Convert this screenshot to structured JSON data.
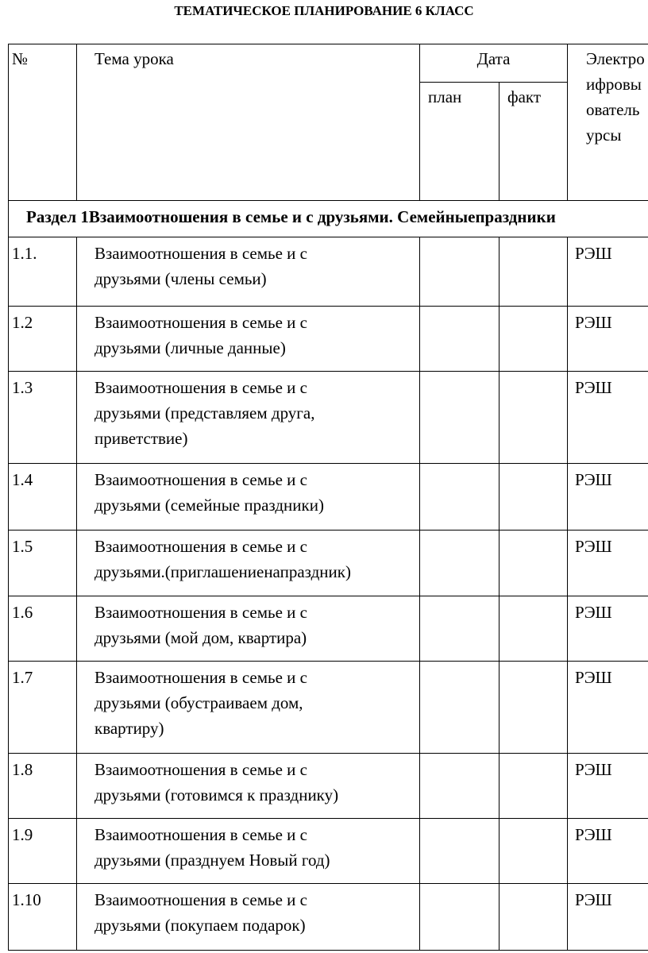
{
  "header": {
    "title": "ТЕМАТИЧЕСКОЕ ПЛАНИРОВАНИЕ 6 КЛАСС"
  },
  "table": {
    "columns": {
      "number": "№",
      "topic": "Тема урока",
      "date": "Дата",
      "plan": "план",
      "fact": "факт",
      "resources": [
        "Электро",
        "ифровы",
        "ователь",
        "урсы"
      ]
    },
    "section": "Раздел 1Взаимоотношения в семье и с друзьями. Семейныепраздники",
    "rows": [
      {
        "number": "1.1.",
        "topic": [
          "Взаимоотношения в семье и с",
          "друзьями (члены семьи)"
        ],
        "resource": "РЭШ"
      },
      {
        "number": "1.2",
        "topic": [
          "Взаимоотношения в семье и с",
          "друзьями (личные данные)"
        ],
        "resource": "РЭШ"
      },
      {
        "number": "1.3",
        "topic": [
          "Взаимоотношения в семье и с",
          "друзьями (представляем друга,",
          "приветствие)"
        ],
        "resource": "РЭШ"
      },
      {
        "number": "1.4",
        "topic": [
          "Взаимоотношения в семье и с",
          "друзьями (семейные праздники)"
        ],
        "resource": "РЭШ"
      },
      {
        "number": "1.5",
        "topic": [
          "Взаимоотношения в семье и с",
          "друзьями.(приглашениенапраздник)"
        ],
        "resource": "РЭШ"
      },
      {
        "number": "1.6",
        "topic": [
          "Взаимоотношения в семье и с",
          "друзьями (мой дом, квартира)"
        ],
        "resource": "РЭШ"
      },
      {
        "number": "1.7",
        "topic": [
          "Взаимоотношения в семье и с",
          "друзьями (обустраиваем дом,",
          "квартиру)"
        ],
        "resource": "РЭШ"
      },
      {
        "number": "1.8",
        "topic": [
          "Взаимоотношения в семье и с",
          "друзьями (готовимся к празднику)"
        ],
        "resource": "РЭШ"
      },
      {
        "number": "1.9",
        "topic": [
          "Взаимоотношения в семье и с",
          "друзьями (празднуем Новый год)"
        ],
        "resource": "РЭШ"
      },
      {
        "number": "1.10",
        "topic": [
          "Взаимоотношения в семье и с",
          "друзьями (покупаем подарок)"
        ],
        "resource": "РЭШ"
      }
    ]
  }
}
